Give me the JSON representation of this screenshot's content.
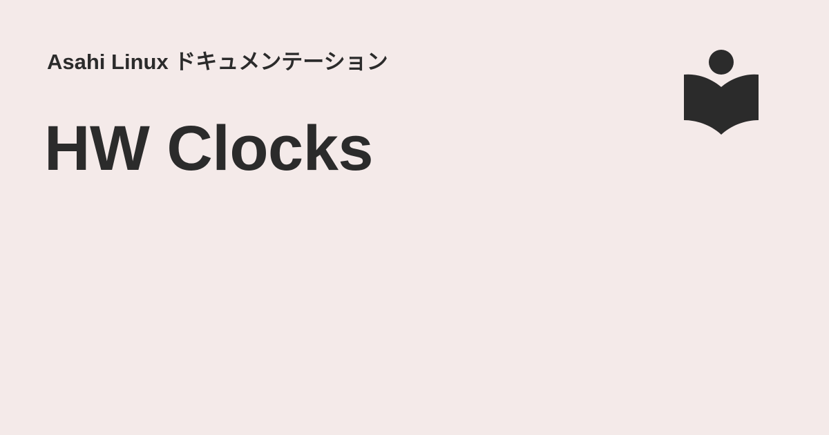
{
  "site": {
    "name": "Asahi Linux ドキュメンテーション"
  },
  "page": {
    "title": "HW Clocks"
  },
  "logo": {
    "icon": "book-reader-icon",
    "color": "#2b2b2b"
  },
  "colors": {
    "background": "#f4eae9",
    "text": "#2b2b2b"
  }
}
